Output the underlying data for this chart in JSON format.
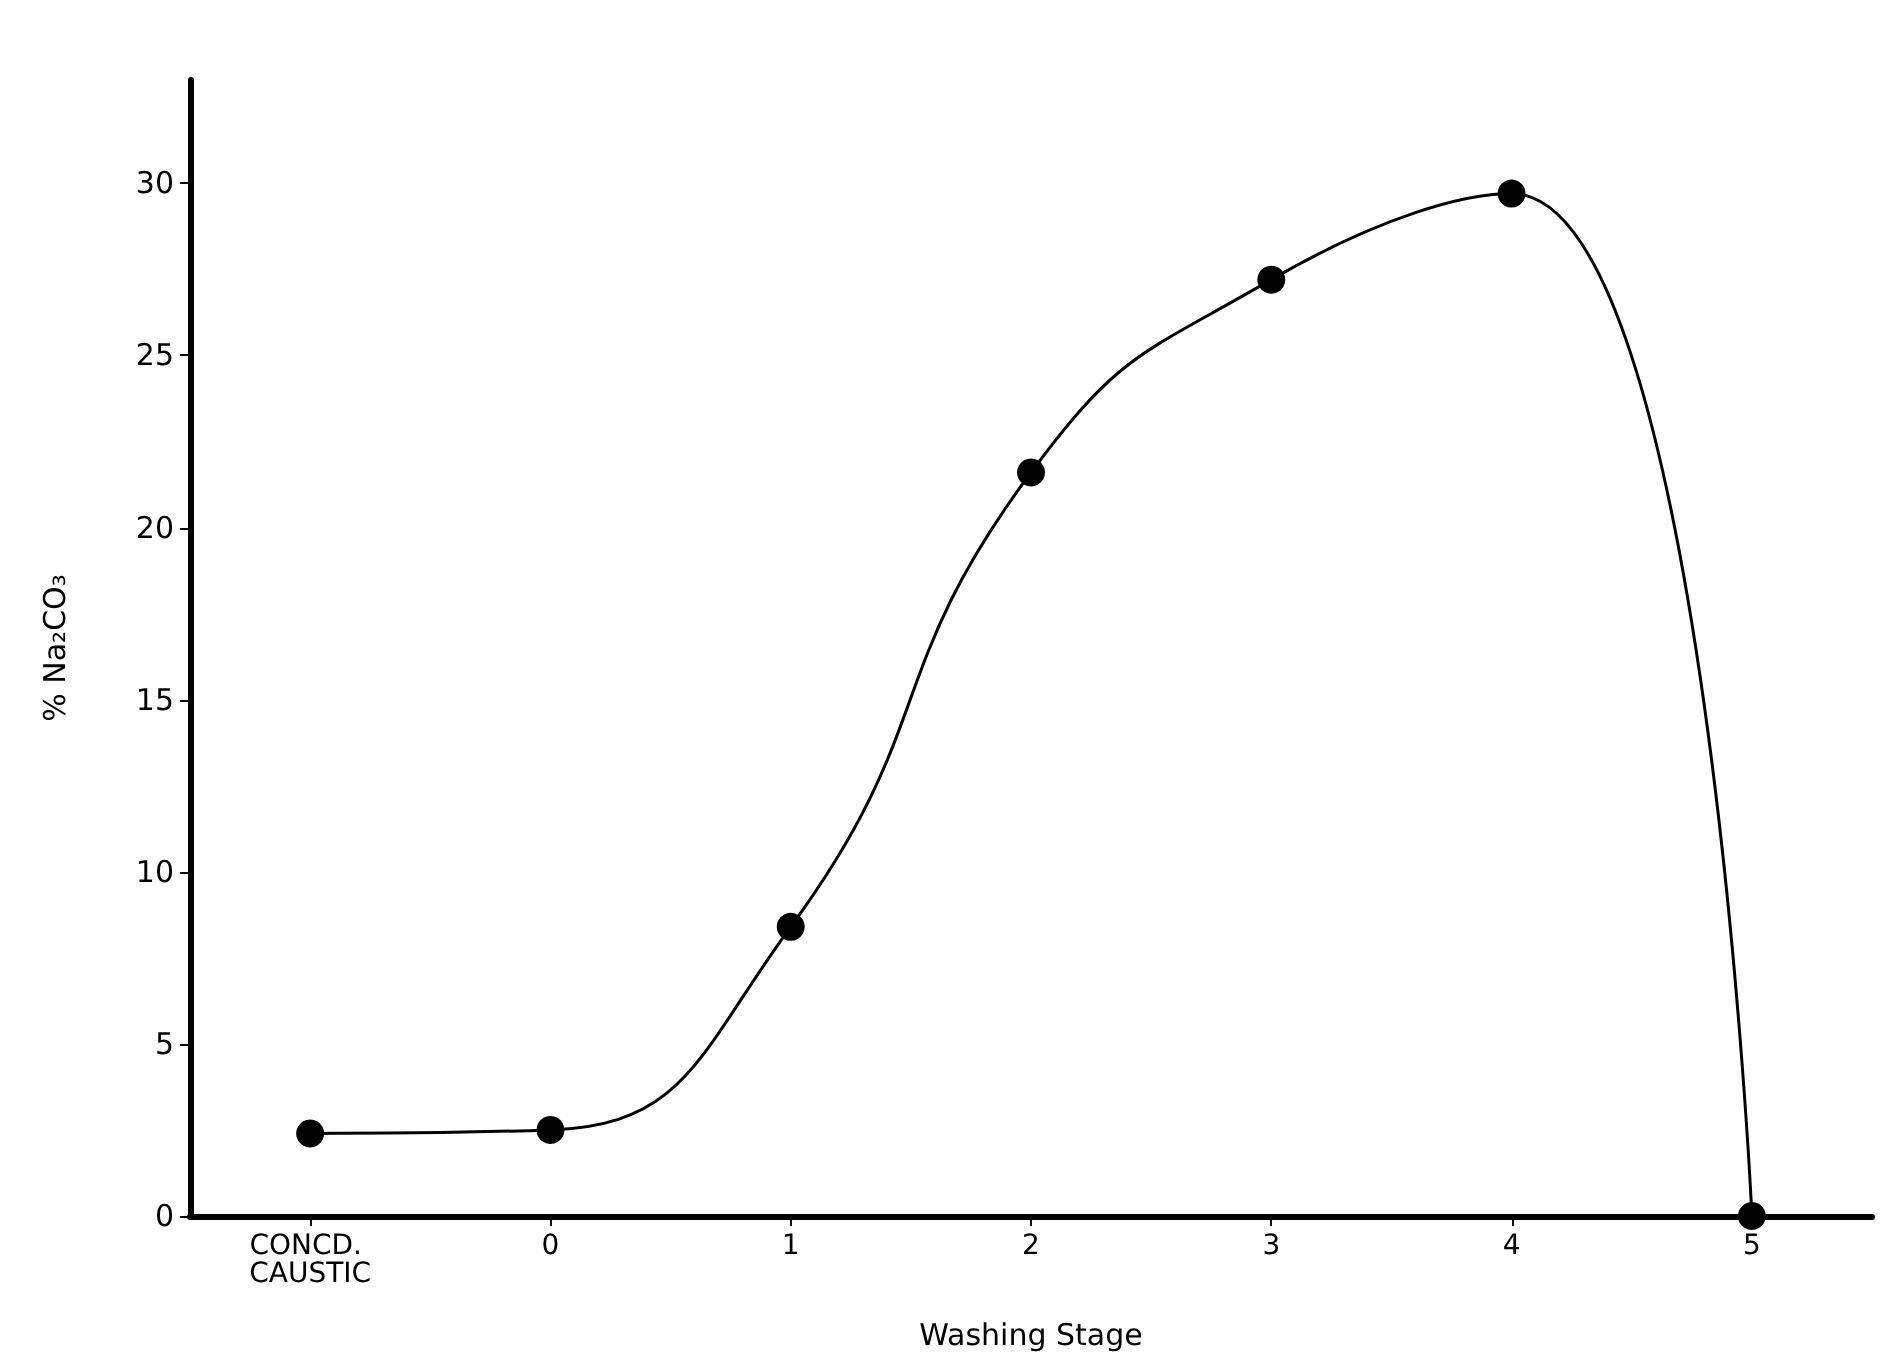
{
  "chart_data": {
    "type": "line",
    "xlabel": "Washing Stage",
    "ylabel": "% Na₂CO₃",
    "categories": [
      "CONCD. CAUSTIC",
      "0",
      "1",
      "2",
      "3",
      "4",
      "5"
    ],
    "series": [
      {
        "color": "#000000",
        "values": [
          2.4,
          2.5,
          8.4,
          21.6,
          27.2,
          29.7,
          0
        ]
      }
    ],
    "ylim": [
      0,
      33
    ],
    "yticks": [
      0,
      5,
      10,
      15,
      20,
      25,
      30
    ],
    "grid": false,
    "marker": "circle",
    "line_style": "solid"
  }
}
